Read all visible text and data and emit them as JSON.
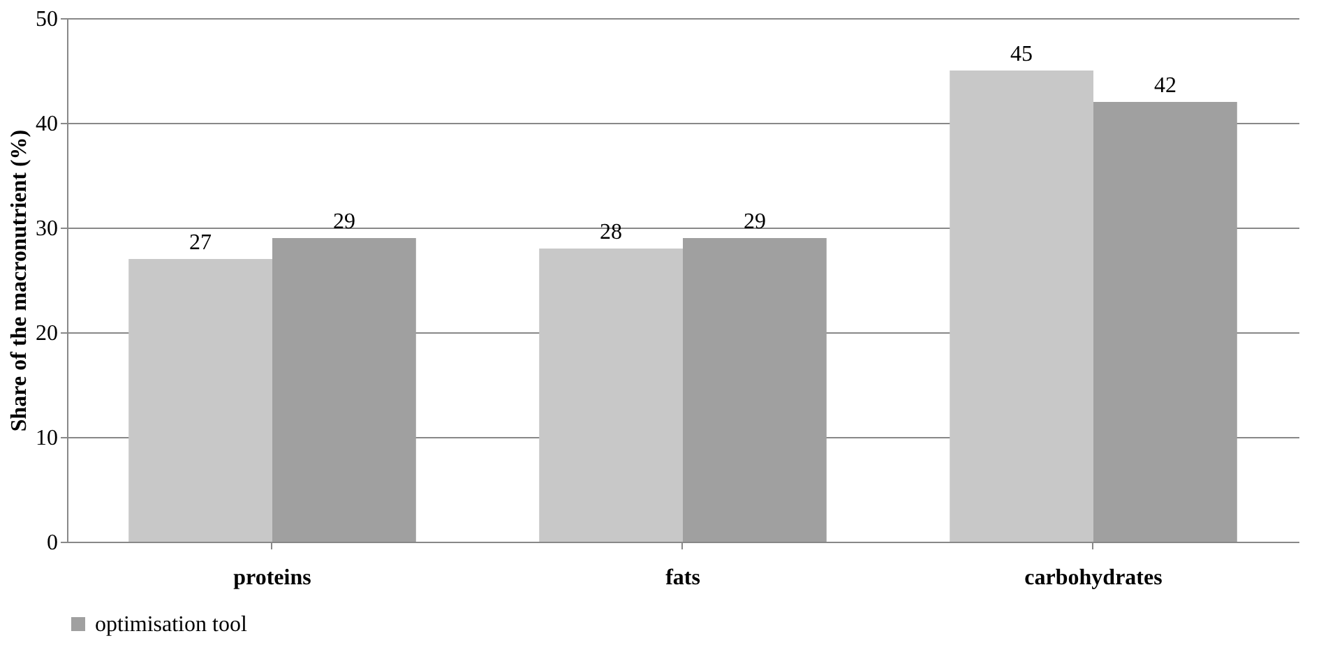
{
  "chart_data": {
    "type": "bar",
    "ylabel": "Share of the macronutrient  (%)",
    "categories": [
      "proteins",
      "fats",
      "carbohydrates"
    ],
    "series": [
      {
        "color": "#c8c8c8",
        "values": [
          27,
          28,
          45
        ]
      },
      {
        "name": "optimisation tool",
        "color": "#a0a0a0",
        "values": [
          29,
          29,
          42
        ]
      }
    ],
    "ylim": [
      0,
      50
    ],
    "yticks": [
      0,
      10,
      20,
      30,
      40,
      50
    ],
    "grid": "y",
    "legend": "bottom",
    "data_labels": true
  }
}
